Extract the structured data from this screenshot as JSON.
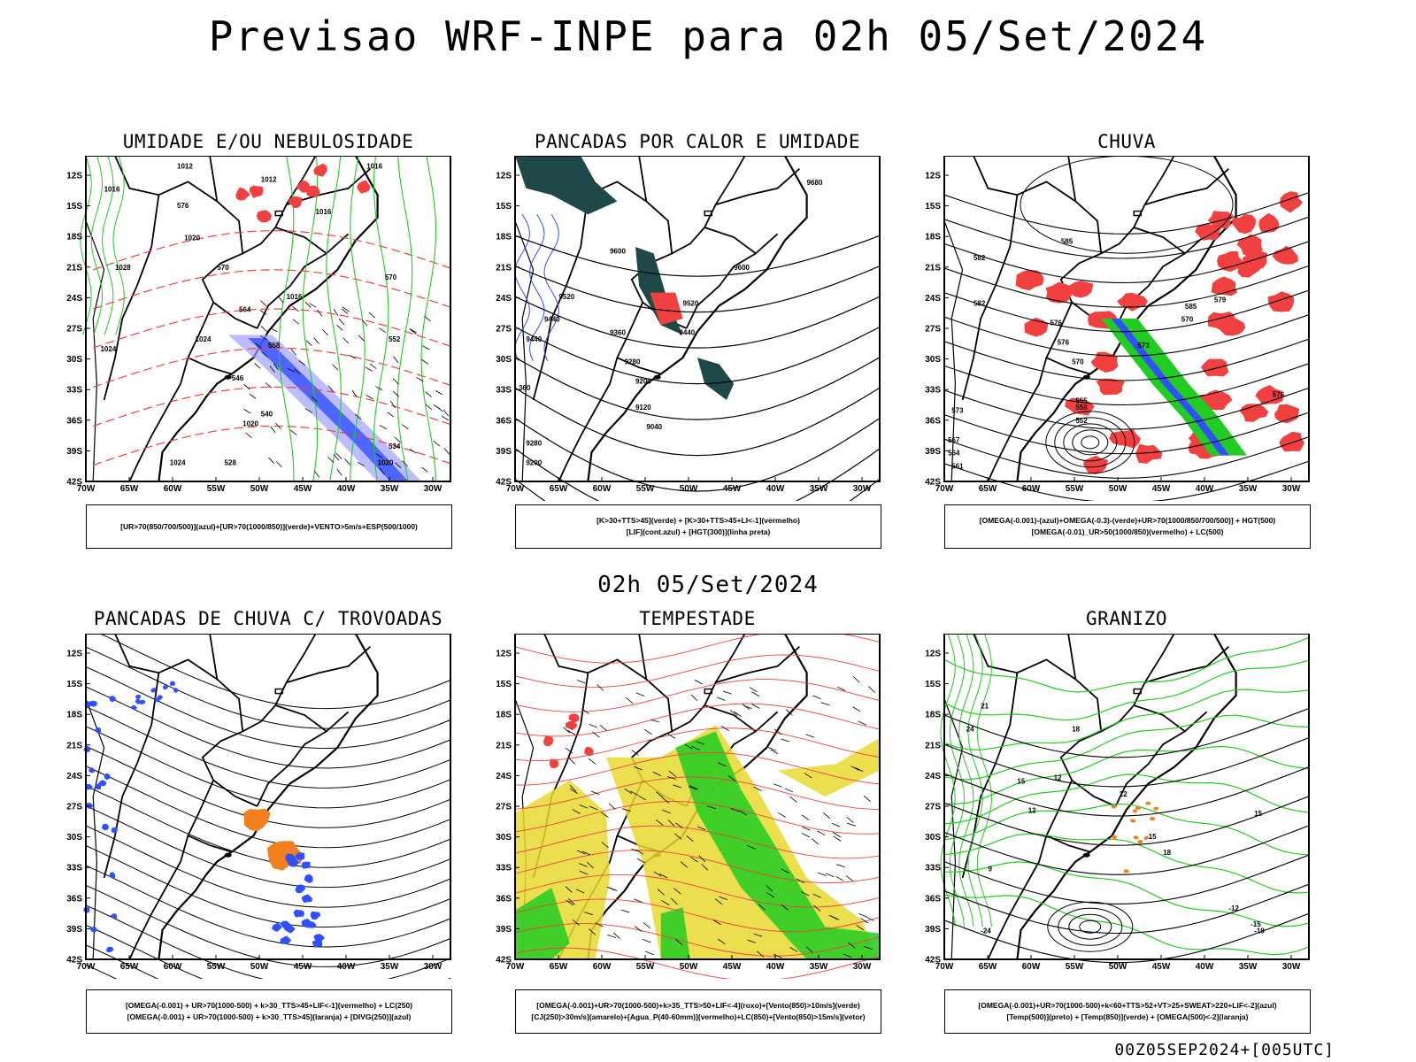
{
  "title": "Previsao WRF-INPE  para 02h 05/Set/2024",
  "mid_time": "02h 05/Set/2024",
  "footer": "00Z05SEP2024+[005UTC]",
  "chart_data": [
    {
      "type": "map",
      "title": "UMIDADE E/OU NEBULOSIDADE",
      "lat_ticks": [
        "12S",
        "15S",
        "18S",
        "21S",
        "24S",
        "27S",
        "30S",
        "33S",
        "36S",
        "39S",
        "42S"
      ],
      "lon_ticks": [
        "70W",
        "65W",
        "60W",
        "55W",
        "50W",
        "45W",
        "40W",
        "35W",
        "30W"
      ],
      "contour_labels": [
        "1012",
        "1012",
        "1016",
        "1016",
        "1016",
        "1020",
        "1024",
        "1028",
        "1024",
        "1020",
        "1024",
        "1020",
        "1016",
        "576",
        "570",
        "570",
        "564",
        "558",
        "552",
        "546",
        "540",
        "534",
        "528"
      ],
      "legend": [
        "[UR>70(850/700/500)](azul)+[UR>70(1000/850)](verde)+VENTO>5m/s+ESP(500/1000)"
      ]
    },
    {
      "type": "map",
      "title": "PANCADAS POR CALOR E UMIDADE",
      "lat_ticks": [
        "12S",
        "15S",
        "18S",
        "21S",
        "24S",
        "27S",
        "30S",
        "33S",
        "36S",
        "39S",
        "42S"
      ],
      "lon_ticks": [
        "70W",
        "65W",
        "60W",
        "55W",
        "50W",
        "45W",
        "40W",
        "35W",
        "30W"
      ],
      "contour_labels": [
        "9680",
        "9600",
        "9600",
        "9520",
        "9520",
        "9440",
        "9440",
        "9440",
        "9360",
        "9280",
        "9200",
        "9120",
        "9040",
        "9280",
        "9200",
        "360"
      ],
      "legend": [
        "[K>30+TTS>45](verde) + [K>30+TTS>45+LI<-1](vermelho)",
        "[LIF](cont.azul) + [HGT(300)](linha preta)"
      ]
    },
    {
      "type": "map",
      "title": "CHUVA",
      "lat_ticks": [
        "12S",
        "15S",
        "18S",
        "21S",
        "24S",
        "27S",
        "30S",
        "33S",
        "36S",
        "39S",
        "42S"
      ],
      "lon_ticks": [
        "70W",
        "65W",
        "60W",
        "55W",
        "50W",
        "45W",
        "40W",
        "35W",
        "30W"
      ],
      "contour_labels": [
        "585",
        "582",
        "582",
        "585",
        "579",
        "576",
        "576",
        "573",
        "570",
        "567",
        "564",
        "561",
        "558",
        "555",
        "552",
        "570",
        "573",
        "576"
      ],
      "legend": [
        "[OMEGA(-0.001)-(azul)+OMEGA(-0.3)-(verde)+UR>70(1000/850/700/500)] + HGT(500)",
        "[OMEGA(-0.01)_UR>50(1000/850)(vermelho) + LC(500)"
      ]
    },
    {
      "type": "map",
      "title": "PANCADAS DE CHUVA C/ TROVOADAS",
      "lat_ticks": [
        "12S",
        "15S",
        "18S",
        "21S",
        "24S",
        "27S",
        "30S",
        "33S",
        "36S",
        "39S",
        "42S"
      ],
      "lon_ticks": [
        "70W",
        "65W",
        "60W",
        "55W",
        "50W",
        "45W",
        "40W",
        "35W",
        "30W"
      ],
      "legend": [
        "[OMEGA(-0.001) + UR>70(1000-500) + k>30_TTS>45+LIF<-1](vermelho) + LC(250)",
        "[OMEGA(-0.001) + UR>70(1000-500) + k>30_TTS>45](laranja) + [DIVG(250)](azul)"
      ]
    },
    {
      "type": "map",
      "title": "TEMPESTADE",
      "lat_ticks": [
        "12S",
        "15S",
        "18S",
        "21S",
        "24S",
        "27S",
        "30S",
        "33S",
        "36S",
        "39S",
        "42S"
      ],
      "lon_ticks": [
        "70W",
        "65W",
        "60W",
        "55W",
        "50W",
        "45W",
        "40W",
        "35W",
        "30W"
      ],
      "legend": [
        "[OMEGA(-0.001)+UR>70(1000-500)+k>35_TTS>50+LIF<-4](roxo)+[Vento(850)>10m/s](verde)",
        "[CJ(250)>30m/s](amarelo)+[Agua_P(40-60mm)](vermelho)+LC(850)+[Vento(850)>15m/s](vetor)"
      ]
    },
    {
      "type": "map",
      "title": "GRANIZO",
      "lat_ticks": [
        "12S",
        "15S",
        "18S",
        "21S",
        "24S",
        "27S",
        "30S",
        "33S",
        "36S",
        "39S",
        "42S"
      ],
      "lon_ticks": [
        "70W",
        "65W",
        "60W",
        "55W",
        "50W",
        "45W",
        "40W",
        "35W",
        "30W"
      ],
      "contour_labels": [
        "24",
        "21",
        "18",
        "15",
        "12",
        "9",
        "12",
        "15",
        "-12",
        "-15",
        "-18",
        "-24",
        "12",
        "15",
        "18"
      ],
      "legend": [
        "[OMEGA(-0.001)+UR>70(1000-500)+k<60+TTS>52+VT>25+SWEAT>220+LIF<-2](azul)",
        "[Temp(500)](preto) + [Temp(850)](verde) + [OMEGA(500)<-2](laranja)"
      ]
    }
  ],
  "colors": {
    "blue": "#3050ff",
    "green": "#22cc22",
    "red": "#f04040",
    "orange": "#f08020",
    "yellow": "#e8d830",
    "teal": "#1f4848",
    "lavender": "#9f9fff"
  }
}
